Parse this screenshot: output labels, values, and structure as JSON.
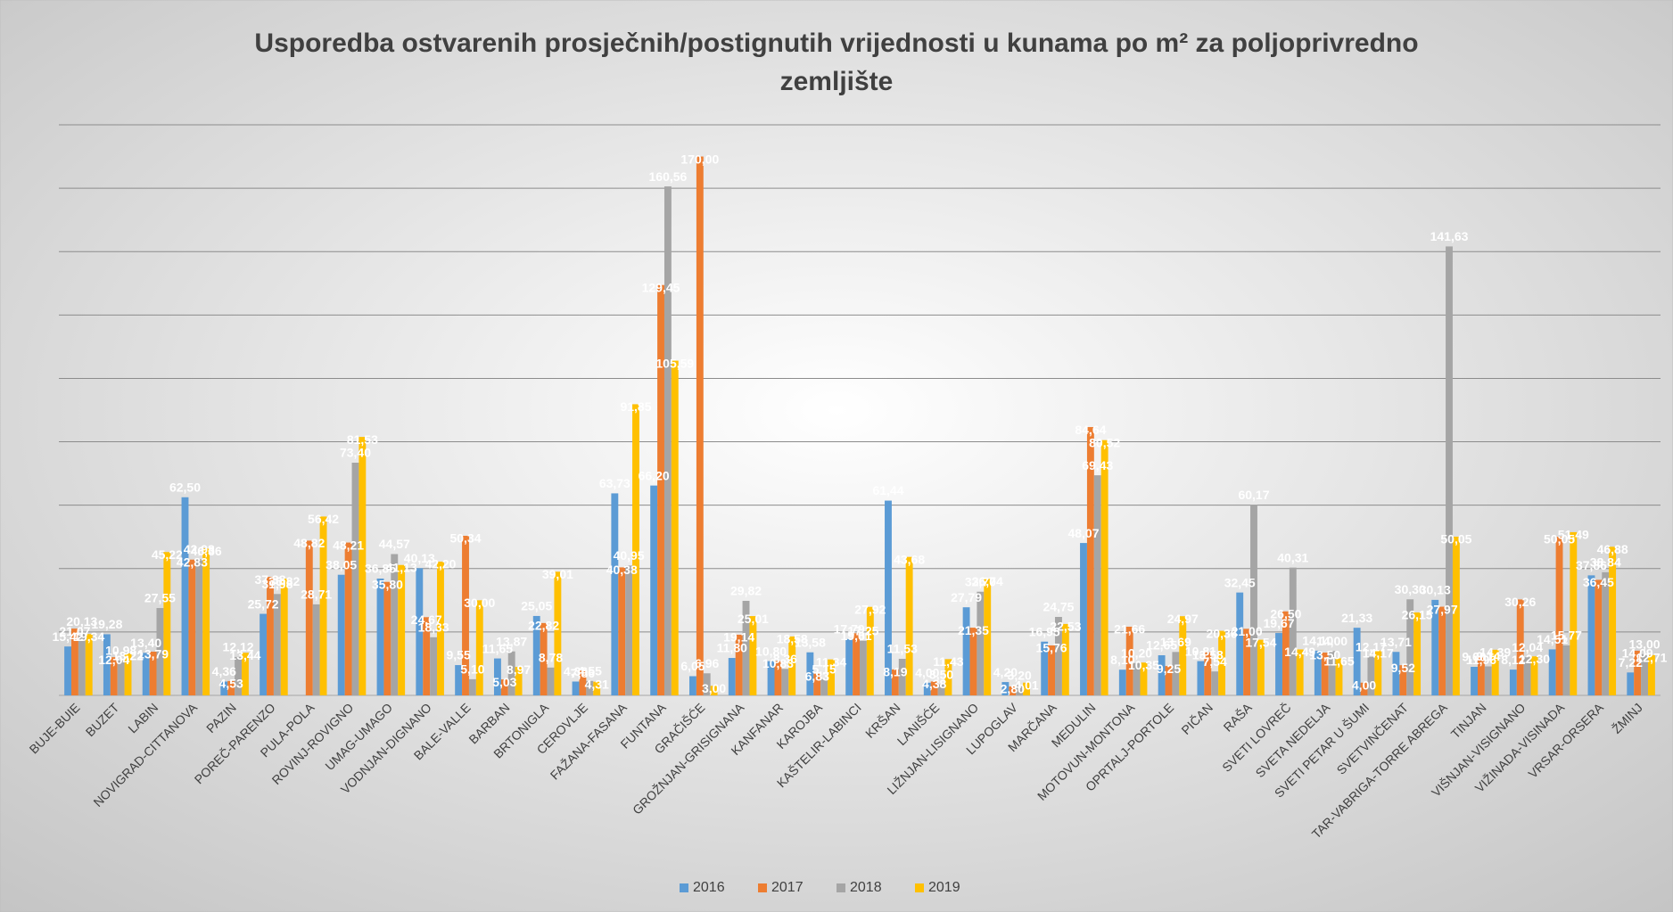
{
  "chart_data": {
    "type": "bar",
    "title": [
      "Usporedba ostvarenih prosječnih/postignutih vrijednosti u kunama po m² za poljoprivredno",
      "zemljište"
    ],
    "categories": [
      "BUJE-BUIE",
      "BUZET",
      "LABIN",
      "NOVIGRAD-CITTANOVA",
      "PAZIN",
      "POREČ-PARENZO",
      "PULA-POLA",
      "ROVINJ-ROVIGNO",
      "UMAG-UMAGO",
      "VODNJAN-DIGNANO",
      "BALE-VALLE",
      "BARBAN",
      "BRTONIGLA",
      "CEROVLJE",
      "FAŽANA-FASANA",
      "FUNTANA",
      "GRAČIŠĆE",
      "GROŽNJAN-GRISIGNANA",
      "KANFANAR",
      "KAROJBA",
      "KAŠTELIR-LABINCI",
      "KRŠAN",
      "LANIŠĆE",
      "LIŽNJAN-LISIGNANO",
      "LUPOGLAV",
      "MARČANA",
      "MEDULIN",
      "MOTOVUN-MONTONA",
      "OPRTALJ-PORTOLE",
      "PIČAN",
      "RAŠA",
      "SVETI LOVREČ",
      "SVETA NEDELJA",
      "SVETI PETAR U ŠUMI",
      "SVETVINČENAT",
      "TAR-VABRIGA-TORRE ABREGA",
      "TINJAN",
      "VIŠNJAN-VISIGNANO",
      "VIŽINADA-VISINADA",
      "VRSAR-ORSERA",
      "ŽMINJ"
    ],
    "series": [
      {
        "name": "2016",
        "color": "#5b9bd5",
        "values": [
          15.42,
          19.28,
          13.4,
          62.5,
          4.36,
          25.72,
          null,
          38.05,
          36.85,
          40.13,
          9.55,
          11.65,
          25.05,
          4.36,
          63.73,
          66.2,
          6.05,
          11.8,
          10.8,
          13.58,
          17.79,
          61.44,
          4.0,
          27.79,
          4.2,
          16.95,
          48.07,
          8.1,
          12.65,
          10.81,
          32.45,
          19.67,
          14.1,
          21.33,
          13.71,
          30.13,
          9.0,
          8.12,
          14.51,
          37.86,
          7.22
        ],
        "value_labels": [
          "15,42",
          "19,28",
          "13,40",
          "62,50",
          "4,36",
          "25,72",
          null,
          "38,05",
          "36,85",
          "40,13",
          "9,55",
          "11,65",
          "25,05",
          "4,36",
          "63,73",
          "66,20",
          "6,05",
          "11,80",
          "10,80",
          "13,58",
          "17,79",
          "61,44",
          "4,00",
          "27,79",
          "4,20",
          "16,95",
          "48,07",
          "8,10",
          "12,65",
          "10,81",
          "32,45",
          "19,67",
          "14,10",
          "21,33",
          "13,71",
          "30,13",
          "9,00",
          "8,12",
          "14,51",
          "37,86",
          "7,22"
        ]
      },
      {
        "name": "2017",
        "color": "#ed7d31",
        "values": [
          21.07,
          12.04,
          13.79,
          42.83,
          4.53,
          37.38,
          48.82,
          48.21,
          35.8,
          24.67,
          50.34,
          5.03,
          22.82,
          7.86,
          40.38,
          129.45,
          170.0,
          19.14,
          10.83,
          6.83,
          19.61,
          8.19,
          4.38,
          21.35,
          2.8,
          15.76,
          84.64,
          21.66,
          9.25,
          13.58,
          21.0,
          26.5,
          13.5,
          4.0,
          9.52,
          27.97,
          11.96,
          30.26,
          50.05,
          36.45,
          14.09
        ],
        "value_labels": [
          "21,07",
          "12,04",
          "13,79",
          "42,83",
          "4,53",
          "37,38",
          "48,82",
          "48,21",
          "35,80",
          "24,67",
          "50,34",
          "5,03",
          "22,82",
          "7,86",
          "40,38",
          "129,45",
          "170,00",
          "19,14",
          "10,83",
          "6,83",
          "19,61",
          "8,19",
          "4,38",
          "21,35",
          "2,80",
          "15,76",
          "84,64",
          "21,66",
          "9,25",
          "13,58",
          "21,00",
          "26,50",
          "13,50",
          "4,00",
          "9,52",
          "27,97",
          "11,96",
          "30,26",
          "50,05",
          "36,45",
          "14,09"
        ]
      },
      {
        "name": "2018",
        "color": "#a5a5a5",
        "values": [
          20.13,
          10.98,
          27.55,
          42.98,
          12.12,
          31.98,
          28.71,
          73.4,
          44.57,
          18.33,
          5.1,
          13.87,
          8.78,
          4.55,
          40.95,
          160.56,
          6.96,
          29.82,
          8.36,
          5.15,
          17.25,
          11.53,
          3.5,
          32.7,
          3.2,
          24.75,
          69.43,
          10.2,
          13.69,
          7.54,
          60.17,
          40.31,
          14.0,
          12.17,
          30.3,
          141.63,
          9.14,
          12.04,
          15.77,
          38.84,
          13.0
        ],
        "value_labels": [
          "20,13",
          "10,98",
          "27,55",
          "42,98",
          "12,12",
          "31,98",
          "28,71",
          "73,40",
          "44,57",
          "18,33",
          "5,10",
          "13,87",
          "8,78",
          "4,55",
          "40,95",
          "160,56",
          "6,96",
          "29,82",
          "8,36",
          "5,15",
          "17,25",
          "11,53",
          "3,50",
          "32,70",
          "3,20",
          "24,75",
          "69,43",
          "10,20",
          "13,69",
          "7,54",
          "60,17",
          "40,31",
          "14,00",
          "12,17",
          "30,30",
          "141,63",
          "9,14",
          "12,04",
          "15,77",
          "38,84",
          "13,00"
        ]
      },
      {
        "name": "2019",
        "color": "#ffc000",
        "values": [
          19.34,
          13.22,
          45.22,
          46.36,
          13.44,
          36.82,
          56.42,
          81.53,
          41.13,
          42.2,
          30.0,
          8.97,
          39.01,
          4.31,
          91.85,
          105.59,
          3.0,
          25.01,
          18.58,
          11.34,
          27.92,
          43.68,
          11.43,
          36.74,
          4.01,
          22.53,
          80.52,
          10.35,
          24.97,
          20.36,
          17.54,
          14.49,
          11.65,
          14.17,
          26.15,
          50.05,
          14.39,
          12.3,
          51.49,
          46.88,
          12.71
        ],
        "value_labels": [
          "19,34",
          "13,22",
          "45,22",
          "46,36",
          "13,44",
          "36,82",
          "56,42",
          "81,53",
          "41,13",
          "42,20",
          "30,00",
          "8,97",
          "39,01",
          "4,31",
          "91,85",
          "105,59",
          "3,00",
          "25,01",
          "18,58",
          "11,34",
          "27,92",
          "43,68",
          "11,43",
          "36,74",
          "4,01",
          "22,53",
          "80,52",
          "10,35",
          "24,97",
          "20,36",
          "17,54",
          "14,49",
          "11,65",
          "14,17",
          "26,15",
          "50,05",
          "14,39",
          "12,30",
          "51,49",
          "46,88",
          "12,71"
        ]
      }
    ],
    "ylim": [
      0,
      180
    ],
    "yticks": [
      0,
      20,
      40,
      60,
      80,
      100,
      120,
      140,
      160,
      180
    ],
    "grid": true,
    "legend": "bottom"
  }
}
